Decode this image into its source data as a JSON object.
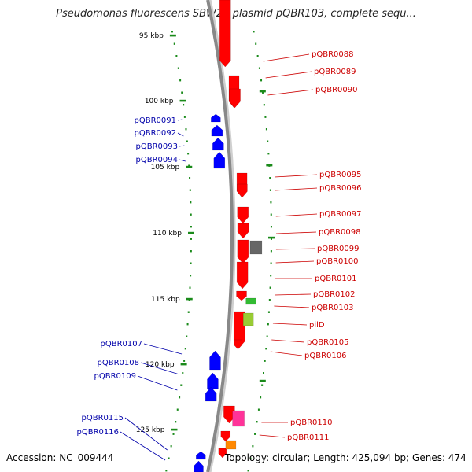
{
  "title": "Pseudomonas fluorescens SBW25 plasmid pQBR103, complete sequ...",
  "footer": {
    "accession": "Accession: NC_009444",
    "summary": "Topology: circular; Length: 425,094 bp; Genes: 474"
  },
  "colors": {
    "forward_gene": "#ff0000",
    "reverse_gene": "#0000ff",
    "forward_label": "#cc0000",
    "reverse_label": "#0000aa",
    "backbone": "#888888",
    "tick": "#1a8a1a",
    "gray_gene": "#666666",
    "green_gene": "#33bb33",
    "lime_gene": "#99cc33",
    "magenta_gene": "#ff3399",
    "orange_gene": "#ff8800"
  },
  "position_labels": [
    "95 kbp",
    "100 kbp",
    "105 kbp",
    "110 kbp",
    "115 kbp",
    "120 kbp",
    "125 kbp"
  ],
  "forward_genes": [
    "pQBR0088",
    "pQBR0089",
    "pQBR0090",
    "pQBR0095",
    "pQBR0096",
    "pQBR0097",
    "pQBR0098",
    "pQBR0099",
    "pQBR0100",
    "pQBR0101",
    "pQBR0102",
    "pQBR0103",
    "pilD",
    "pQBR0105",
    "pQBR0106",
    "pQBR0110",
    "pQBR0111"
  ],
  "reverse_genes": [
    "pQBR0091",
    "pQBR0092",
    "pQBR0093",
    "pQBR0094",
    "pQBR0107",
    "pQBR0108",
    "pQBR0109",
    "pQBR0115",
    "pQBR0116"
  ]
}
